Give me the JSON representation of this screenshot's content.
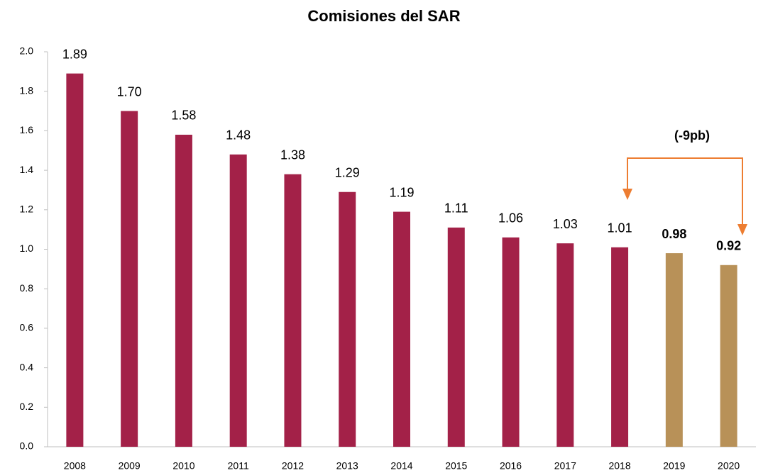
{
  "chart_data": {
    "type": "bar",
    "title": "Comisiones del SAR",
    "categories": [
      "2008",
      "2009",
      "2010",
      "2011",
      "2012",
      "2013",
      "2014",
      "2015",
      "2016",
      "2017",
      "2018",
      "2019",
      "2020"
    ],
    "values": [
      1.89,
      1.7,
      1.58,
      1.48,
      1.38,
      1.29,
      1.19,
      1.11,
      1.06,
      1.03,
      1.01,
      0.98,
      0.92
    ],
    "value_labels": [
      "1.89",
      "1.70",
      "1.58",
      "1.48",
      "1.38",
      "1.29",
      "1.19",
      "1.11",
      "1.06",
      "1.03",
      "1.01",
      "0.98",
      "0.92"
    ],
    "colors": [
      "#a32148",
      "#a32148",
      "#a32148",
      "#a32148",
      "#a32148",
      "#a32148",
      "#a32148",
      "#a32148",
      "#a32148",
      "#a32148",
      "#a32148",
      "#b89158",
      "#b89158"
    ],
    "ylim": [
      0,
      2
    ],
    "yticks": [
      {
        "value": 0,
        "label": "0.0"
      },
      0.2,
      0.4,
      0.6,
      0.8,
      {
        "value": 1,
        "label": "1.0"
      },
      1.2,
      1.4,
      1.6,
      1.8,
      {
        "value": 2,
        "label": "2.0"
      }
    ],
    "grid": false,
    "annotation": "(-9pb)"
  }
}
